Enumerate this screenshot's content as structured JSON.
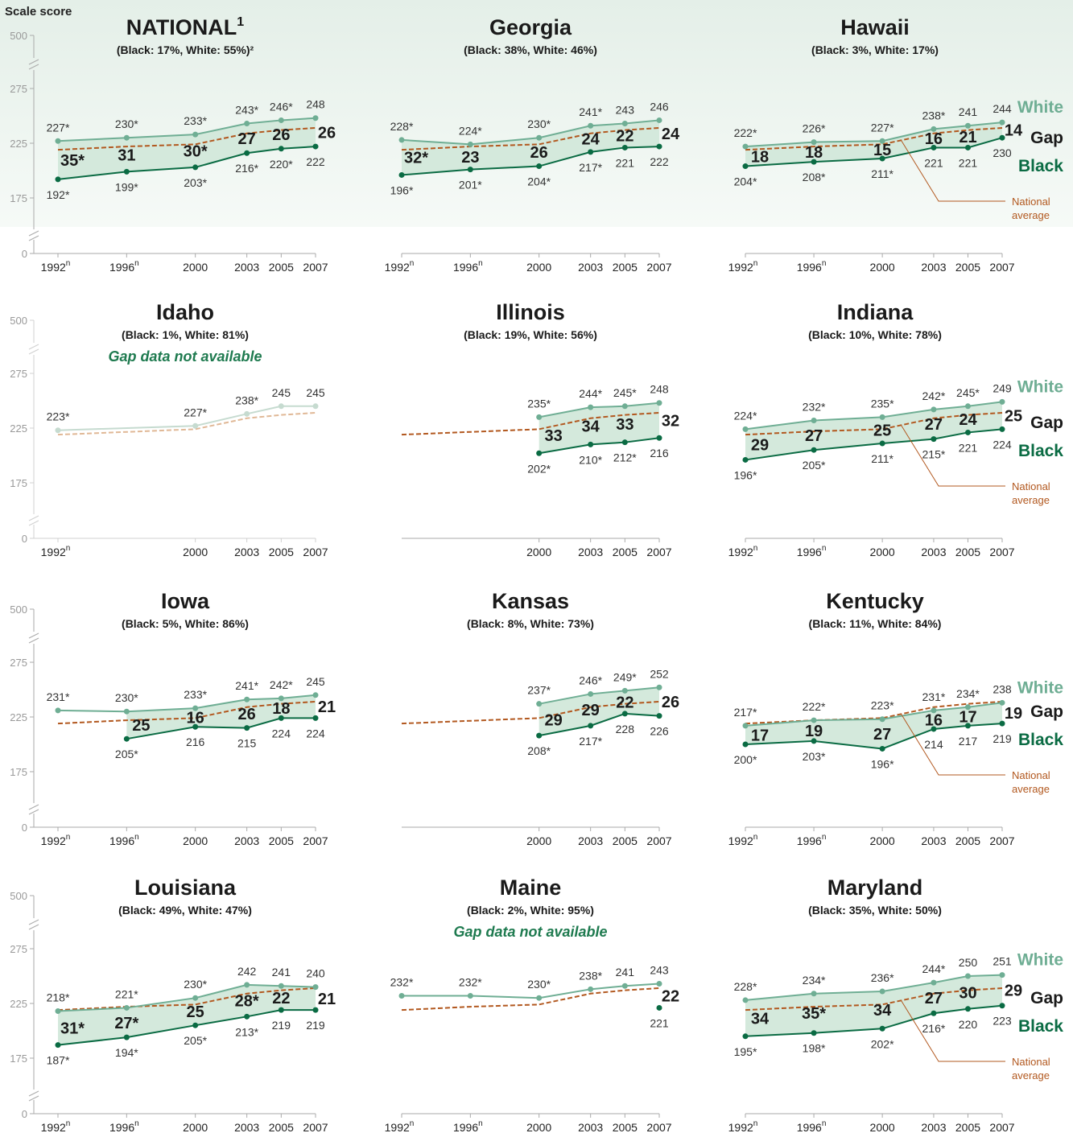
{
  "colors": {
    "white": "#6fae94",
    "black": "#0a6b43",
    "gap_fill": "#d4e9dc",
    "national": "#b2581f",
    "axis": "#aaaaaa",
    "faded": "#c6dbd0",
    "na_text": "#1e7a4f"
  },
  "y_axis_label": "Scale score",
  "legend": {
    "white": "White",
    "gap": "Gap",
    "black": "Black",
    "national_line1": "National",
    "national_line2": "average"
  },
  "chart_data": [
    {
      "type": "line",
      "title": "NATIONAL",
      "title_sup": "1",
      "subtitle": "(Black: 17%, White: 55%)²",
      "y_ticks": [
        "500",
        "275",
        "225",
        "175",
        "0"
      ],
      "x_ticks": [
        {
          "year": "1992",
          "sup": "n"
        },
        {
          "year": "1996",
          "sup": "n"
        },
        {
          "year": "2000",
          "sup": ""
        },
        {
          "year": "2003",
          "sup": ""
        },
        {
          "year": "2005",
          "sup": ""
        },
        {
          "year": "2007",
          "sup": ""
        }
      ],
      "x": [
        1992,
        1996,
        2000,
        2003,
        2005,
        2007
      ],
      "white": [
        227,
        230,
        233,
        243,
        246,
        248
      ],
      "white_labels": [
        "227*",
        "230*",
        "233*",
        "243*",
        "246*",
        "248"
      ],
      "black": [
        192,
        199,
        203,
        216,
        220,
        222
      ],
      "black_labels": [
        "192*",
        "199*",
        "203*",
        "216*",
        "220*",
        "222"
      ],
      "gap_labels": [
        "35*",
        "31",
        "30*",
        "27",
        "26",
        "26"
      ],
      "national_x": [
        1992,
        1996,
        2000,
        2003,
        2005,
        2007
      ],
      "national_y": [
        219,
        222,
        224,
        234,
        237,
        239
      ],
      "legend": false
    },
    {
      "type": "line",
      "title": "Georgia",
      "subtitle": "(Black: 38%, White: 46%)",
      "x_ticks": [
        {
          "year": "1992",
          "sup": "n"
        },
        {
          "year": "1996",
          "sup": "n"
        },
        {
          "year": "2000",
          "sup": ""
        },
        {
          "year": "2003",
          "sup": ""
        },
        {
          "year": "2005",
          "sup": ""
        },
        {
          "year": "2007",
          "sup": ""
        }
      ],
      "x": [
        1992,
        1996,
        2000,
        2003,
        2005,
        2007
      ],
      "white": [
        228,
        224,
        230,
        241,
        243,
        246
      ],
      "white_labels": [
        "228*",
        "224*",
        "230*",
        "241*",
        "243",
        "246"
      ],
      "black": [
        196,
        201,
        204,
        217,
        221,
        222
      ],
      "black_labels": [
        "196*",
        "201*",
        "204*",
        "217*",
        "221",
        "222"
      ],
      "gap_labels": [
        "32*",
        "23",
        "26",
        "24",
        "22",
        "24"
      ],
      "national_x": [
        1992,
        1996,
        2000,
        2003,
        2005,
        2007
      ],
      "national_y": [
        219,
        222,
        224,
        234,
        237,
        239
      ],
      "legend": false
    },
    {
      "type": "line",
      "title": "Hawaii",
      "subtitle": "(Black: 3%, White: 17%)",
      "x_ticks": [
        {
          "year": "1992",
          "sup": "n"
        },
        {
          "year": "1996",
          "sup": "n"
        },
        {
          "year": "2000",
          "sup": ""
        },
        {
          "year": "2003",
          "sup": ""
        },
        {
          "year": "2005",
          "sup": ""
        },
        {
          "year": "2007",
          "sup": ""
        }
      ],
      "x": [
        1992,
        1996,
        2000,
        2003,
        2005,
        2007
      ],
      "white": [
        222,
        226,
        227,
        238,
        241,
        244
      ],
      "white_labels": [
        "222*",
        "226*",
        "227*",
        "238*",
        "241",
        "244"
      ],
      "black": [
        204,
        208,
        211,
        221,
        221,
        230
      ],
      "black_labels": [
        "204*",
        "208*",
        "211*",
        "221",
        "221",
        "230"
      ],
      "gap_labels": [
        "18",
        "18",
        "15",
        "16",
        "21",
        "14"
      ],
      "national_x": [
        1992,
        1996,
        2000,
        2003,
        2005,
        2007
      ],
      "national_y": [
        219,
        222,
        224,
        234,
        237,
        239
      ],
      "legend": true
    },
    {
      "type": "line",
      "title": "Idaho",
      "subtitle": "(Black: 1%, White: 81%)",
      "note": "Gap data not available",
      "faded": true,
      "y_ticks": [
        "500",
        "275",
        "225",
        "175",
        "0"
      ],
      "x_ticks": [
        {
          "year": "1992",
          "sup": "n"
        },
        {
          "year": "2000",
          "sup": ""
        },
        {
          "year": "2003",
          "sup": ""
        },
        {
          "year": "2005",
          "sup": ""
        },
        {
          "year": "2007",
          "sup": ""
        }
      ],
      "x": [
        1992,
        2000,
        2003,
        2005,
        2007
      ],
      "white": [
        223,
        227,
        238,
        245,
        245
      ],
      "white_labels": [
        "223*",
        "227*",
        "238*",
        "245",
        "245"
      ],
      "black": [],
      "black_labels": [],
      "gap_labels": [],
      "national_x": [
        1992,
        2000,
        2003,
        2005,
        2007
      ],
      "national_y": [
        219,
        224,
        234,
        237,
        239
      ],
      "legend": false
    },
    {
      "type": "line",
      "title": "Illinois",
      "subtitle": "(Black: 19%, White: 56%)",
      "x_ticks": [
        {
          "year": "2000",
          "sup": ""
        },
        {
          "year": "2003",
          "sup": ""
        },
        {
          "year": "2005",
          "sup": ""
        },
        {
          "year": "2007",
          "sup": ""
        }
      ],
      "x": [
        2000,
        2003,
        2005,
        2007
      ],
      "white": [
        235,
        244,
        245,
        248
      ],
      "white_labels": [
        "235*",
        "244*",
        "245*",
        "248"
      ],
      "black": [
        202,
        210,
        212,
        216
      ],
      "black_labels": [
        "202*",
        "210*",
        "212*",
        "216"
      ],
      "gap_labels": [
        "33",
        "34",
        "33",
        "32"
      ],
      "national_x": [
        1992,
        2000,
        2003,
        2005,
        2007
      ],
      "national_y": [
        219,
        224,
        234,
        237,
        239
      ],
      "legend": false
    },
    {
      "type": "line",
      "title": "Indiana",
      "subtitle": "(Black: 10%, White: 78%)",
      "x_ticks": [
        {
          "year": "1992",
          "sup": "n"
        },
        {
          "year": "1996",
          "sup": "n"
        },
        {
          "year": "2000",
          "sup": ""
        },
        {
          "year": "2003",
          "sup": ""
        },
        {
          "year": "2005",
          "sup": ""
        },
        {
          "year": "2007",
          "sup": ""
        }
      ],
      "x": [
        1992,
        1996,
        2000,
        2003,
        2005,
        2007
      ],
      "white": [
        224,
        232,
        235,
        242,
        245,
        249
      ],
      "white_labels": [
        "224*",
        "232*",
        "235*",
        "242*",
        "245*",
        "249"
      ],
      "black": [
        196,
        205,
        211,
        215,
        221,
        224
      ],
      "black_labels": [
        "196*",
        "205*",
        "211*",
        "215*",
        "221",
        "224"
      ],
      "gap_labels": [
        "29",
        "27",
        "25",
        "27",
        "24",
        "25"
      ],
      "national_x": [
        1992,
        1996,
        2000,
        2003,
        2005,
        2007
      ],
      "national_y": [
        219,
        222,
        224,
        234,
        237,
        239
      ],
      "legend": true
    },
    {
      "type": "line",
      "title": "Iowa",
      "subtitle": "(Black: 5%, White: 86%)",
      "y_ticks": [
        "500",
        "275",
        "225",
        "175",
        "0"
      ],
      "x_ticks": [
        {
          "year": "1992",
          "sup": "n"
        },
        {
          "year": "1996",
          "sup": "n"
        },
        {
          "year": "2000",
          "sup": ""
        },
        {
          "year": "2003",
          "sup": ""
        },
        {
          "year": "2005",
          "sup": ""
        },
        {
          "year": "2007",
          "sup": ""
        }
      ],
      "x": [
        1992,
        1996,
        2000,
        2003,
        2005,
        2007
      ],
      "white": [
        231,
        230,
        233,
        241,
        242,
        245
      ],
      "white_labels": [
        "231*",
        "230*",
        "233*",
        "241*",
        "242*",
        "245"
      ],
      "black_x": [
        1996,
        2000,
        2003,
        2005,
        2007
      ],
      "black": [
        205,
        216,
        215,
        224,
        224
      ],
      "black_labels": [
        "205*",
        "216",
        "215",
        "224",
        "224"
      ],
      "gap_x": [
        1996,
        2000,
        2003,
        2005,
        2007
      ],
      "gap_labels": [
        "25",
        "16",
        "26",
        "18",
        "21"
      ],
      "national_x": [
        1992,
        1996,
        2000,
        2003,
        2005,
        2007
      ],
      "national_y": [
        219,
        222,
        224,
        234,
        237,
        239
      ],
      "legend": false
    },
    {
      "type": "line",
      "title": "Kansas",
      "subtitle": "(Black: 8%, White: 73%)",
      "x_ticks": [
        {
          "year": "2000",
          "sup": ""
        },
        {
          "year": "2003",
          "sup": ""
        },
        {
          "year": "2005",
          "sup": ""
        },
        {
          "year": "2007",
          "sup": ""
        }
      ],
      "x": [
        2000,
        2003,
        2005,
        2007
      ],
      "white": [
        237,
        246,
        249,
        252
      ],
      "white_labels": [
        "237*",
        "246*",
        "249*",
        "252"
      ],
      "black": [
        208,
        217,
        228,
        226
      ],
      "black_labels": [
        "208*",
        "217*",
        "228",
        "226"
      ],
      "gap_labels": [
        "29",
        "29",
        "22",
        "26"
      ],
      "national_x": [
        1992,
        2000,
        2003,
        2005,
        2007
      ],
      "national_y": [
        219,
        224,
        234,
        237,
        239
      ],
      "legend": false
    },
    {
      "type": "line",
      "title": "Kentucky",
      "subtitle": "(Black: 11%, White: 84%)",
      "x_ticks": [
        {
          "year": "1992",
          "sup": "n"
        },
        {
          "year": "1996",
          "sup": "n"
        },
        {
          "year": "2000",
          "sup": ""
        },
        {
          "year": "2003",
          "sup": ""
        },
        {
          "year": "2005",
          "sup": ""
        },
        {
          "year": "2007",
          "sup": ""
        }
      ],
      "x": [
        1992,
        1996,
        2000,
        2003,
        2005,
        2007
      ],
      "white": [
        217,
        222,
        223,
        231,
        234,
        238
      ],
      "white_labels": [
        "217*",
        "222*",
        "223*",
        "231*",
        "234*",
        "238"
      ],
      "black": [
        200,
        203,
        196,
        214,
        217,
        219
      ],
      "black_labels": [
        "200*",
        "203*",
        "196*",
        "214",
        "217",
        "219"
      ],
      "gap_labels": [
        "17",
        "19",
        "27",
        "16",
        "17",
        "19"
      ],
      "national_x": [
        1992,
        1996,
        2000,
        2003,
        2005,
        2007
      ],
      "national_y": [
        219,
        222,
        224,
        234,
        237,
        239
      ],
      "legend": true
    },
    {
      "type": "line",
      "title": "Louisiana",
      "subtitle": "(Black: 49%, White: 47%)",
      "y_ticks": [
        "500",
        "275",
        "225",
        "175",
        "0"
      ],
      "x_ticks": [
        {
          "year": "1992",
          "sup": "n"
        },
        {
          "year": "1996",
          "sup": "n"
        },
        {
          "year": "2000",
          "sup": ""
        },
        {
          "year": "2003",
          "sup": ""
        },
        {
          "year": "2005",
          "sup": ""
        },
        {
          "year": "2007",
          "sup": ""
        }
      ],
      "x": [
        1992,
        1996,
        2000,
        2003,
        2005,
        2007
      ],
      "white": [
        218,
        221,
        230,
        242,
        241,
        240
      ],
      "white_labels": [
        "218*",
        "221*",
        "230*",
        "242",
        "241",
        "240"
      ],
      "black": [
        187,
        194,
        205,
        213,
        219,
        219
      ],
      "black_labels": [
        "187*",
        "194*",
        "205*",
        "213*",
        "219",
        "219"
      ],
      "gap_labels": [
        "31*",
        "27*",
        "25",
        "28*",
        "22",
        "21"
      ],
      "national_x": [
        1992,
        1996,
        2000,
        2003,
        2005,
        2007
      ],
      "national_y": [
        219,
        222,
        224,
        234,
        237,
        239
      ],
      "legend": false
    },
    {
      "type": "line",
      "title": "Maine",
      "subtitle": "(Black: 2%, White: 95%)",
      "note": "Gap data not available",
      "x_ticks": [
        {
          "year": "1992",
          "sup": "n"
        },
        {
          "year": "1996",
          "sup": "n"
        },
        {
          "year": "2000",
          "sup": ""
        },
        {
          "year": "2003",
          "sup": ""
        },
        {
          "year": "2005",
          "sup": ""
        },
        {
          "year": "2007",
          "sup": ""
        }
      ],
      "x": [
        1992,
        1996,
        2000,
        2003,
        2005,
        2007
      ],
      "white": [
        232,
        232,
        230,
        238,
        241,
        243
      ],
      "white_labels": [
        "232*",
        "232*",
        "230*",
        "238*",
        "241",
        "243"
      ],
      "black_x": [
        2007
      ],
      "black": [
        221
      ],
      "black_labels": [
        "221"
      ],
      "gap_x": [
        2007
      ],
      "gap_labels": [
        "22"
      ],
      "national_x": [
        1992,
        1996,
        2000,
        2003,
        2005,
        2007
      ],
      "national_y": [
        219,
        222,
        224,
        234,
        237,
        239
      ],
      "legend": false
    },
    {
      "type": "line",
      "title": "Maryland",
      "subtitle": "(Black: 35%, White: 50%)",
      "x_ticks": [
        {
          "year": "1992",
          "sup": "n"
        },
        {
          "year": "1996",
          "sup": "n"
        },
        {
          "year": "2000",
          "sup": ""
        },
        {
          "year": "2003",
          "sup": ""
        },
        {
          "year": "2005",
          "sup": ""
        },
        {
          "year": "2007",
          "sup": ""
        }
      ],
      "x": [
        1992,
        1996,
        2000,
        2003,
        2005,
        2007
      ],
      "white": [
        228,
        234,
        236,
        244,
        250,
        251
      ],
      "white_labels": [
        "228*",
        "234*",
        "236*",
        "244*",
        "250",
        "251"
      ],
      "black": [
        195,
        198,
        202,
        216,
        220,
        223
      ],
      "black_labels": [
        "195*",
        "198*",
        "202*",
        "216*",
        "220",
        "223"
      ],
      "gap_labels": [
        "34",
        "35*",
        "34",
        "27",
        "30",
        "29"
      ],
      "national_x": [
        1992,
        1996,
        2000,
        2003,
        2005,
        2007
      ],
      "national_y": [
        219,
        222,
        224,
        234,
        237,
        239
      ],
      "legend": true
    }
  ]
}
